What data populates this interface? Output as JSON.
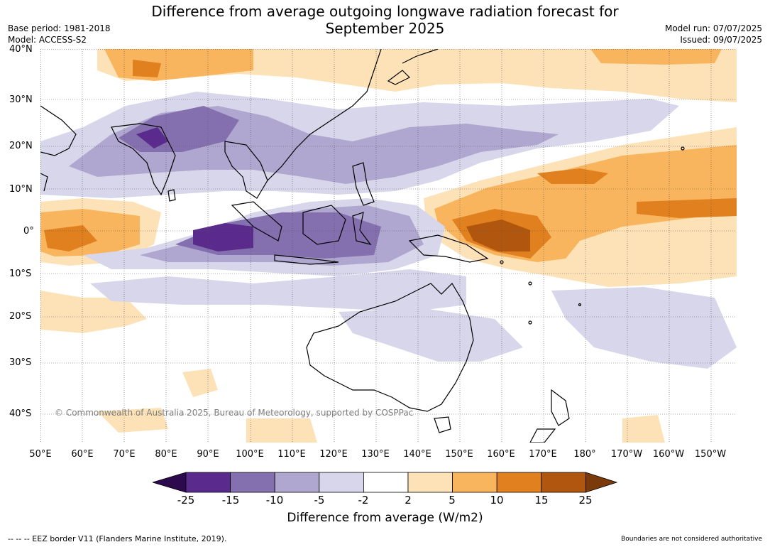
{
  "title_line1": "Difference from average outgoing longwave radiation forecast for",
  "title_line2": "September 2025",
  "meta_left": {
    "base_period": "Base period: 1981-2018",
    "model": "Model: ACCESS-S2"
  },
  "meta_right": {
    "model_run": "Model run: 07/07/2025",
    "issued": "Issued: 09/07/2025"
  },
  "latitude_labels": [
    "40°N",
    "30°N",
    "20°N",
    "10°N",
    "0°",
    "10°S",
    "20°S",
    "30°S",
    "40°S"
  ],
  "longitude_labels": [
    "50°E",
    "60°E",
    "70°E",
    "80°E",
    "90°E",
    "100°E",
    "110°E",
    "120°E",
    "130°E",
    "140°E",
    "150°E",
    "160°E",
    "170°E",
    "180°",
    "170°W",
    "160°W",
    "150°W"
  ],
  "copyright": "© Commonwealth of Australia 2025, Bureau of Meteorology, supported by COSPPac",
  "colorbar": {
    "ticks": [
      "-25",
      "-15",
      "-10",
      "-5",
      "-2",
      "2",
      "5",
      "10",
      "15",
      "25"
    ],
    "colors": [
      "#2d0a4e",
      "#5a2a8c",
      "#8470ae",
      "#b0a7d0",
      "#d7d6ea",
      "#ffffff",
      "#fde2b7",
      "#f9b45e",
      "#e0801e",
      "#b1560e",
      "#7a3a0a"
    ],
    "label": "Difference from average (W/m2)"
  },
  "footer_left": "--  --  -- EEZ border V11 (Flanders Marine Institute, 2019).",
  "footer_right": "Boundaries are not considered authoritative"
}
